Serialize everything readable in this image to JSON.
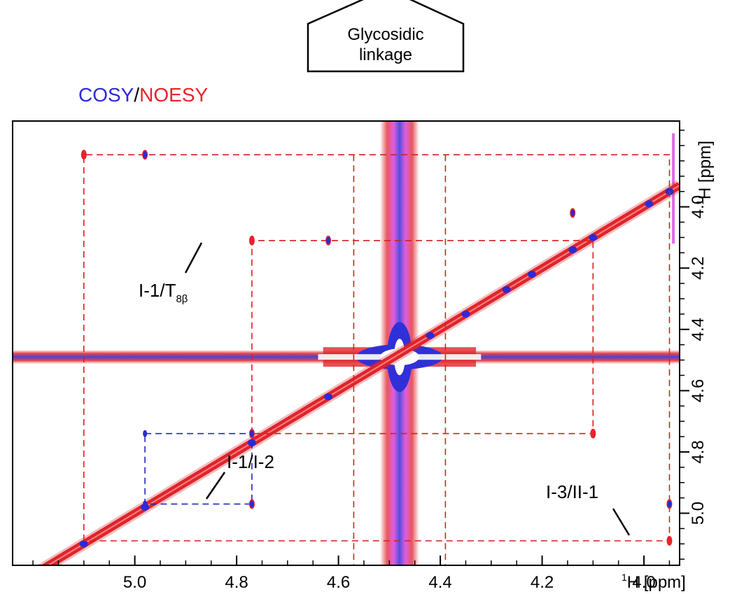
{
  "callout": {
    "line1": "Glycosidic",
    "line2": "linkage"
  },
  "legend": {
    "cosy": "COSY",
    "sep": "/",
    "noesy": "NOESY"
  },
  "colors": {
    "cosy": "#2b2bd6",
    "noesy": "#e8232b",
    "tocsy": "#d62bd6",
    "noesy_dash": "#d42020",
    "cosy_dash": "#2323c8"
  },
  "chart_data": {
    "type": "scatter",
    "title": "",
    "x_axis": {
      "label_sup": "1",
      "label_main": "H [ppm]",
      "range": [
        5.24,
        3.93
      ],
      "reversed": true,
      "ticks": [
        5.0,
        4.8,
        4.6,
        4.4,
        4.2,
        4.0
      ],
      "tick_labels": [
        "5.0",
        "4.8",
        "4.6",
        "4.4",
        "4.2",
        "4.0"
      ]
    },
    "y_axis": {
      "label_sup": "1",
      "label_main": "H [ppm]",
      "range": [
        3.72,
        5.17
      ],
      "ticks": [
        4.0,
        4.2,
        4.4,
        4.6,
        4.8,
        5.0
      ],
      "tick_labels": [
        "4.0",
        "4.2",
        "4.4",
        "4.6",
        "4.8",
        "5.0"
      ]
    },
    "annotations": [
      {
        "text_main": "I-1/T",
        "text_sub": "8β",
        "x": 4.77,
        "y": 4.11
      },
      {
        "text_main": "I-1/I-2",
        "x": 4.77,
        "y": 4.97
      },
      {
        "text_main": "I-3/II-1",
        "x": 3.95,
        "y": 5.09
      }
    ],
    "noesy_peaks": [
      {
        "x": 5.1,
        "y": 3.83
      },
      {
        "x": 4.98,
        "y": 3.83
      },
      {
        "x": 4.62,
        "y": 4.11
      },
      {
        "x": 4.77,
        "y": 4.11
      },
      {
        "x": 4.77,
        "y": 4.74
      },
      {
        "x": 4.77,
        "y": 4.97
      },
      {
        "x": 4.1,
        "y": 4.74
      },
      {
        "x": 3.95,
        "y": 5.09
      },
      {
        "x": 3.95,
        "y": 4.97
      },
      {
        "x": 4.14,
        "y": 4.02
      }
    ],
    "cosy_peaks": [
      {
        "x": 4.98,
        "y": 4.74
      },
      {
        "x": 4.98,
        "y": 4.97
      },
      {
        "x": 4.77,
        "y": 4.74
      },
      {
        "x": 4.77,
        "y": 4.97
      },
      {
        "x": 4.62,
        "y": 4.11
      },
      {
        "x": 4.98,
        "y": 3.83
      },
      {
        "x": 4.14,
        "y": 4.02
      },
      {
        "x": 3.95,
        "y": 4.97
      }
    ],
    "noesy_dashed_paths": [
      [
        [
          5.1,
          5.09
        ],
        [
          5.1,
          3.83
        ],
        [
          3.95,
          3.83
        ],
        [
          3.95,
          5.09
        ],
        [
          5.1,
          5.09
        ]
      ],
      [
        [
          4.77,
          4.74
        ],
        [
          4.77,
          4.11
        ],
        [
          4.1,
          4.11
        ],
        [
          4.1,
          4.74
        ],
        [
          4.77,
          4.74
        ]
      ],
      [
        [
          4.57,
          3.83
        ],
        [
          4.57,
          5.17
        ]
      ],
      [
        [
          4.39,
          3.83
        ],
        [
          4.39,
          5.17
        ]
      ]
    ],
    "cosy_dashed_paths": [
      [
        [
          4.98,
          4.74
        ],
        [
          4.77,
          4.74
        ],
        [
          4.77,
          4.97
        ],
        [
          4.98,
          4.97
        ],
        [
          4.98,
          4.74
        ]
      ]
    ]
  }
}
